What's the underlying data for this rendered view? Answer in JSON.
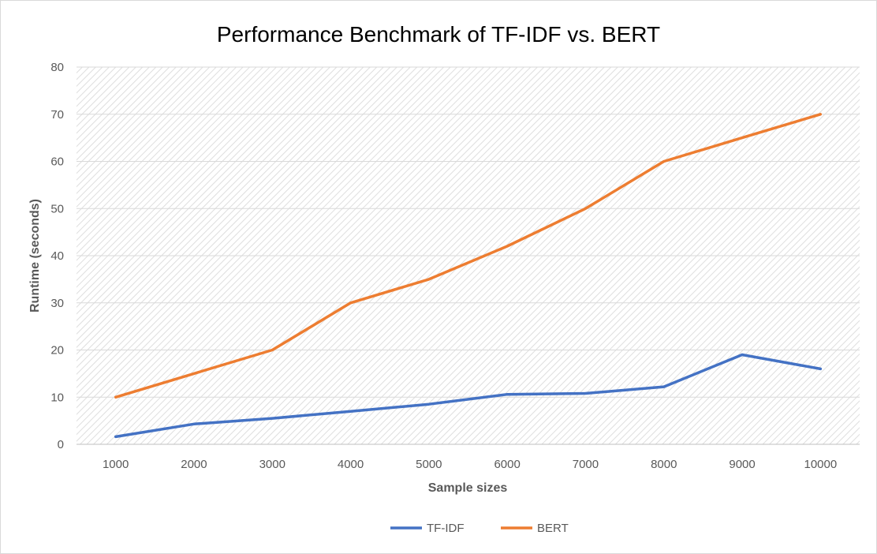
{
  "chart_data": {
    "type": "line",
    "title": "Performance Benchmark of TF-IDF vs. BERT",
    "xlabel": "Sample sizes",
    "ylabel": "Runtime (seconds)",
    "categories": [
      "1000",
      "2000",
      "3000",
      "4000",
      "5000",
      "6000",
      "7000",
      "8000",
      "9000",
      "10000"
    ],
    "ylim": [
      0,
      80
    ],
    "yticks": [
      0,
      10,
      20,
      30,
      40,
      50,
      60,
      70,
      80
    ],
    "grid": true,
    "legend_position": "bottom",
    "series": [
      {
        "name": "TF-IDF",
        "color": "#4472C4",
        "values": [
          1.6,
          4.3,
          5.5,
          7.0,
          8.5,
          10.6,
          10.8,
          12.2,
          19.0,
          16.0
        ]
      },
      {
        "name": "BERT",
        "color": "#ED7D31",
        "values": [
          10,
          15,
          20,
          30,
          35,
          42,
          50,
          60,
          65,
          70
        ]
      }
    ]
  }
}
